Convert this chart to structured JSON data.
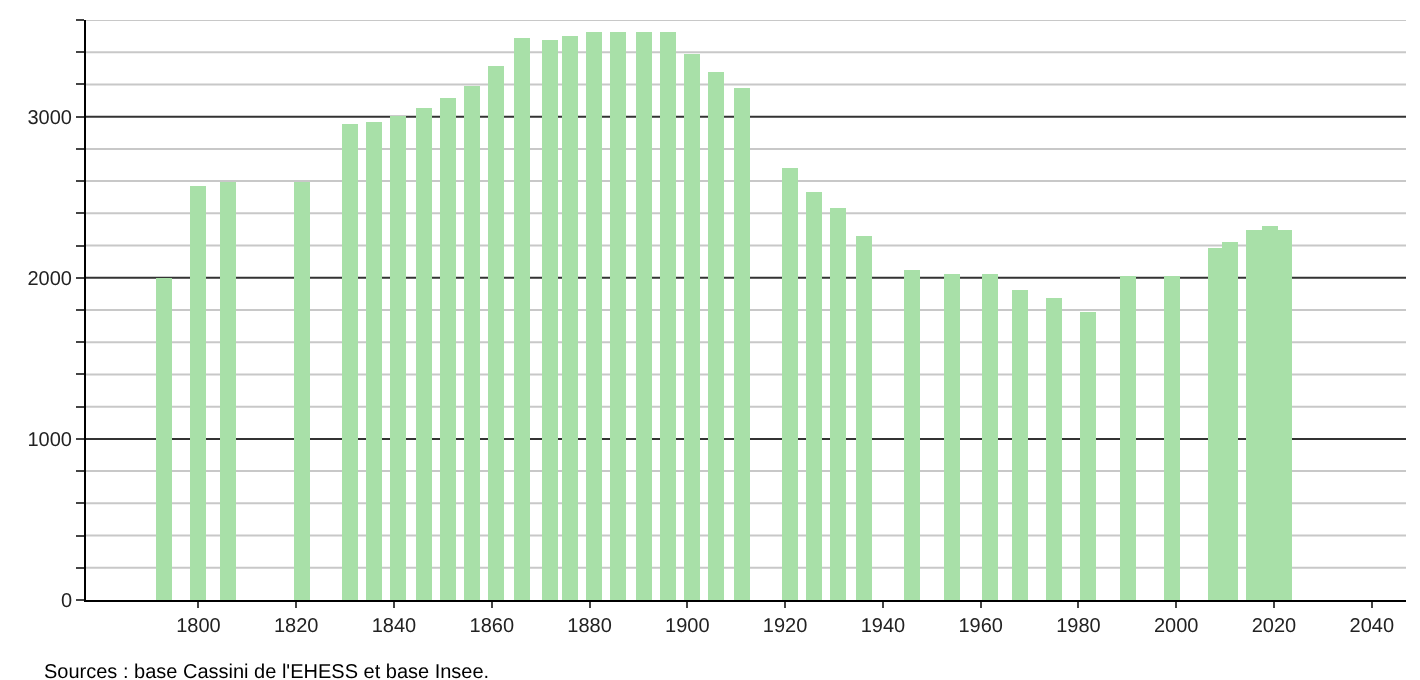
{
  "chart_data": {
    "type": "bar",
    "x": [
      1793,
      1800,
      1806,
      1821,
      1831,
      1836,
      1841,
      1846,
      1851,
      1856,
      1861,
      1866,
      1872,
      1876,
      1881,
      1886,
      1891,
      1896,
      1901,
      1906,
      1911,
      1921,
      1926,
      1931,
      1936,
      1946,
      1954,
      1962,
      1968,
      1975,
      1982,
      1990,
      1999,
      2008,
      2011,
      2016,
      2019,
      2022
    ],
    "values": [
      2000,
      2570,
      2600,
      2600,
      2950,
      2970,
      3000,
      3060,
      3110,
      3190,
      3320,
      3490,
      3470,
      3500,
      3530,
      3530,
      3520,
      3530,
      3390,
      3280,
      3180,
      2680,
      2530,
      2430,
      2260,
      2050,
      2020,
      2020,
      1930,
      1880,
      1790,
      2010,
      2010,
      2180,
      2220,
      2300,
      2320,
      2300
    ],
    "color": "#a8e0a8",
    "xlim": [
      1777,
      2047
    ],
    "xticks": [
      1800,
      1820,
      1840,
      1860,
      1880,
      1900,
      1920,
      1940,
      1960,
      1980,
      2000,
      2020,
      2040
    ],
    "ylim": [
      0,
      3600
    ],
    "yticks": [
      0,
      {
        "value": 200,
        "label": null
      },
      {
        "value": 400,
        "label": null
      },
      {
        "value": 600,
        "label": null
      },
      {
        "value": 800,
        "label": null
      },
      1000,
      {
        "value": 1200,
        "label": null
      },
      {
        "value": 1400,
        "label": null
      },
      {
        "value": 1600,
        "label": null
      },
      {
        "value": 1800,
        "label": null
      },
      2000,
      {
        "value": 2200,
        "label": null
      },
      {
        "value": 2400,
        "label": null
      },
      {
        "value": 2600,
        "label": null
      },
      {
        "value": 2800,
        "label": null
      },
      3000,
      {
        "value": 3200,
        "label": null
      },
      {
        "value": 3400,
        "label": null
      },
      {
        "value": 3600,
        "label": null
      }
    ],
    "grid": "y",
    "annotations": [
      "Sources : base Cassini de l'EHESS et base Insee."
    ]
  }
}
